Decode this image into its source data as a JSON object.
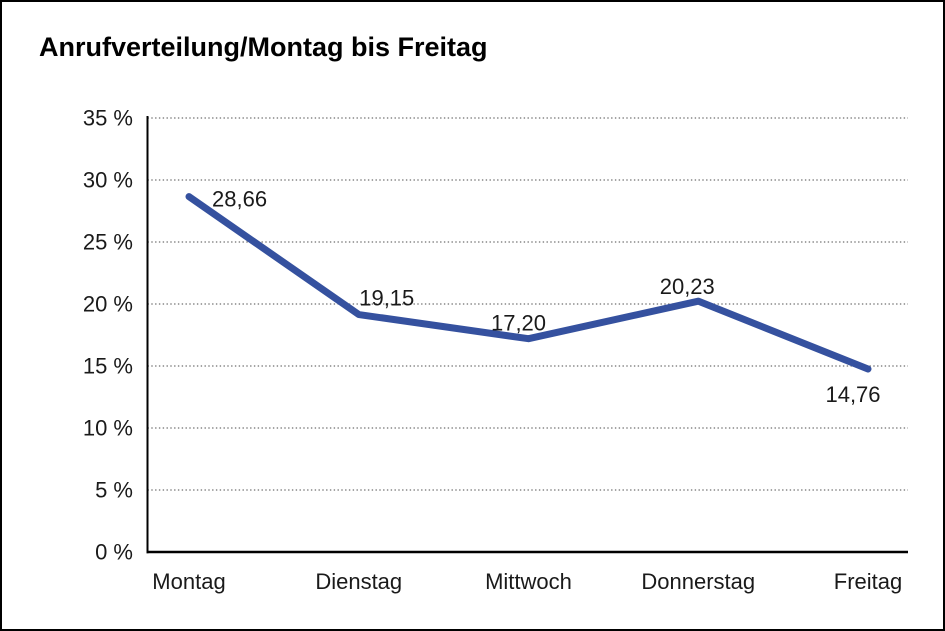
{
  "chart": {
    "title": "Anrufverteilung/Montag bis Freitag"
  },
  "chart_data": {
    "type": "line",
    "title": "Anrufverteilung/Montag bis Freitag",
    "categories": [
      "Montag",
      "Dienstag",
      "Mittwoch",
      "Donnerstag",
      "Freitag"
    ],
    "values": [
      28.66,
      19.15,
      17.2,
      20.23,
      14.76
    ],
    "value_labels": [
      "28,66",
      "19,15",
      "17,20",
      "20,23",
      "14,76"
    ],
    "xlabel": "",
    "ylabel": "",
    "ylim": [
      0,
      35
    ],
    "ytick_step": 5,
    "ytick_labels": [
      "0 %",
      "5 %",
      "10 %",
      "15 %",
      "20 %",
      "25 %",
      "30 %",
      "35 %"
    ],
    "grid": "horizontal-dotted",
    "legend": "none",
    "colors": {
      "line": "#35519f",
      "gridline": "#6e6e6e",
      "axis": "#000000",
      "text": "#1a1a1a"
    }
  }
}
